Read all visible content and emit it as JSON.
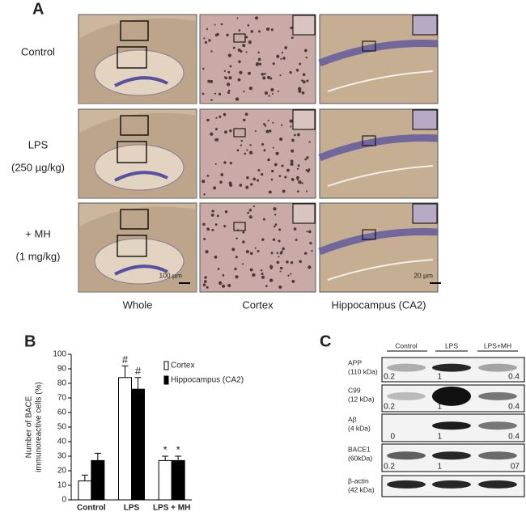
{
  "panel_a": {
    "label": "A",
    "rows": [
      [
        "Control"
      ],
      [
        "LPS",
        "(250 µg/kg)"
      ],
      [
        "+ MH",
        "(1 mg/kg)"
      ]
    ],
    "columns": [
      "Whole",
      "Cortex",
      "Hippocampus (CA2)"
    ],
    "scale_bars": [
      "100 µm",
      "20 µm"
    ]
  },
  "chart_data": {
    "type": "bar",
    "label": "B",
    "y_label": [
      "Number of BACE",
      "immunoreactive cells (%)"
    ],
    "categories": [
      "Control",
      "LPS",
      "LPS + MH"
    ],
    "series": [
      {
        "name": "Cortex",
        "color": "#ffffff",
        "values": [
          13,
          84,
          27
        ],
        "errors": [
          4,
          8,
          3
        ],
        "markers": [
          null,
          "#",
          "*"
        ]
      },
      {
        "name": "Hippocampus (CA2)",
        "color": "#000000",
        "values": [
          27,
          76,
          27
        ],
        "errors": [
          5,
          8,
          3
        ],
        "markers": [
          null,
          "#",
          "*"
        ]
      }
    ],
    "ylim": [
      0,
      100
    ],
    "yticks": [
      0,
      10,
      20,
      30,
      40,
      50,
      60,
      70,
      80,
      90,
      100
    ]
  },
  "panel_c": {
    "label": "C",
    "lanes": [
      "Control",
      "LPS",
      "LPS+MH"
    ],
    "rows": [
      {
        "name": "APP",
        "size": "(110 kDa)",
        "values": [
          "0.2",
          "1",
          "0.4"
        ]
      },
      {
        "name": "C99",
        "size": "(12 kDa)",
        "values": [
          "0.2",
          "1",
          "0.4"
        ]
      },
      {
        "name": "Aβ",
        "size": "(4 kDa)",
        "values": [
          "0",
          "1",
          "0.4"
        ]
      },
      {
        "name": "BACE1",
        "size": "(60kDa)",
        "values": [
          "0.2",
          "1",
          "07"
        ]
      },
      {
        "name": "β-actin",
        "size": "(42 kDa)"
      }
    ]
  }
}
